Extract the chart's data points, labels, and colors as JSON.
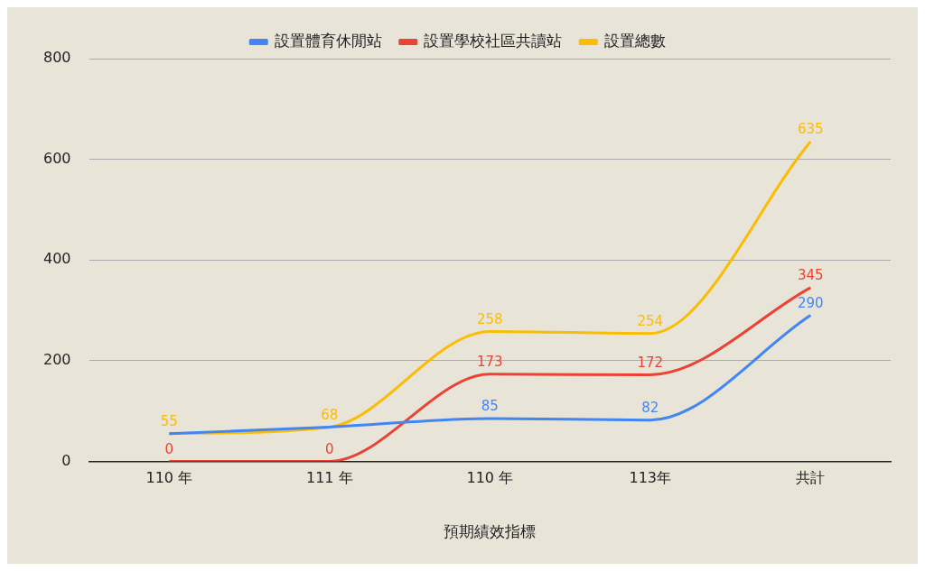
{
  "chart_data": {
    "type": "line",
    "xlabel": "預期績效指標",
    "categories": [
      "110 年",
      "111 年",
      "110 年",
      "113年",
      "共計"
    ],
    "series": [
      {
        "name": "設置體育休閒站",
        "color": "#4285f4",
        "values": [
          55,
          68,
          85,
          82,
          290
        ],
        "value_labels": [
          null,
          null,
          "85",
          "82",
          "290"
        ]
      },
      {
        "name": "設置學校社區共讀站",
        "color": "#ea4335",
        "values": [
          0,
          0,
          173,
          172,
          345
        ],
        "value_labels": [
          "0",
          "0",
          "173",
          "172",
          "345"
        ]
      },
      {
        "name": "設置總數",
        "color": "#fbbc04",
        "values": [
          55,
          68,
          258,
          254,
          635
        ],
        "value_labels": [
          "55",
          "68",
          "258",
          "254",
          "635"
        ]
      }
    ],
    "ylim": [
      0,
      800
    ],
    "yticks": [
      0,
      200,
      400,
      600,
      800
    ],
    "grid": "y",
    "legend": "top",
    "marker": "none",
    "line_style": "solid"
  }
}
